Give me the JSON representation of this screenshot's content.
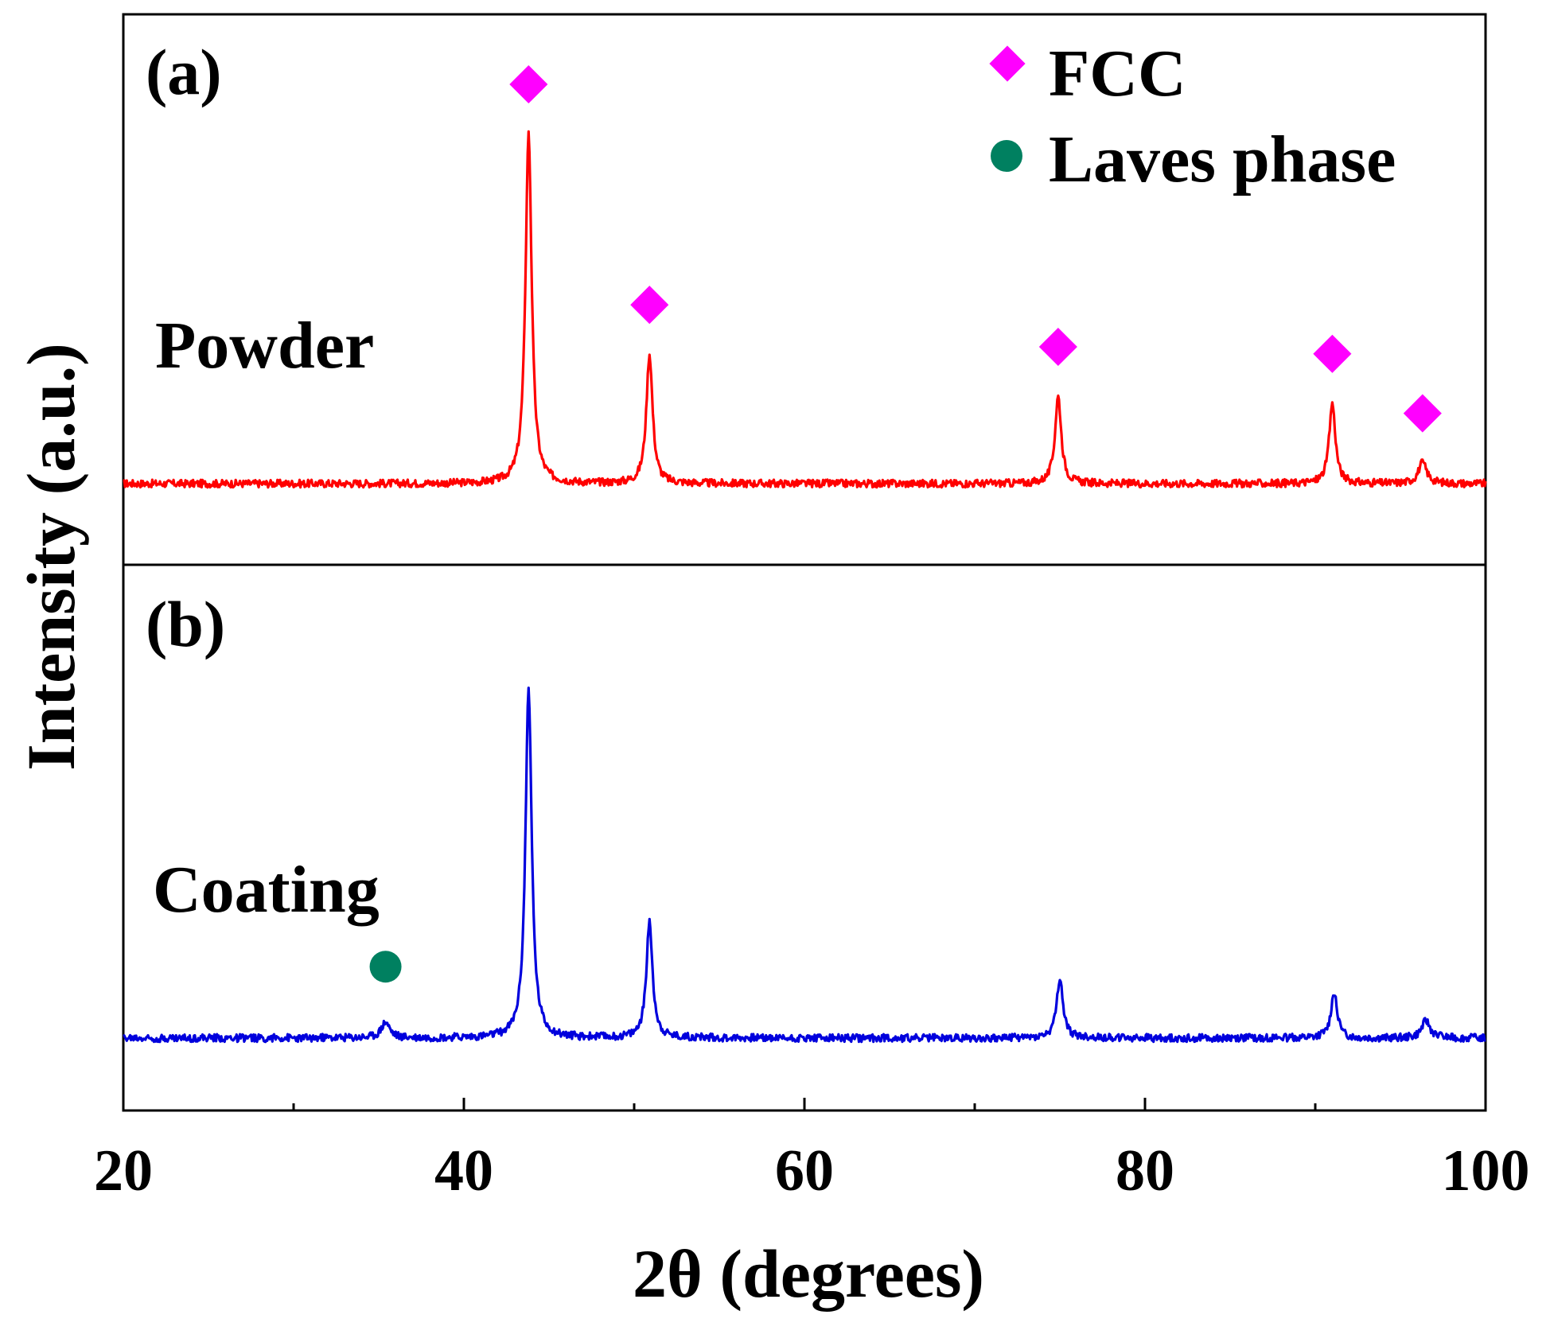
{
  "chart_data": {
    "type": "line",
    "xlabel": "2θ (degrees)",
    "ylabel": "Intensity (a.u.)",
    "xlim": [
      20,
      100
    ],
    "x_ticks": [
      "20",
      "40",
      "60",
      "80",
      "100"
    ],
    "x_minor_ticks": [
      30,
      50,
      70,
      90
    ],
    "legend": [
      {
        "label": "FCC",
        "marker": "diamond",
        "color": "#ff00ff"
      },
      {
        "label": "Laves phase",
        "marker": "circle",
        "color": "#008060"
      }
    ],
    "panels": [
      {
        "id": "a",
        "panel_label": "(a)",
        "sample_label": "Powder",
        "color": "#ff0000",
        "baseline": 0.1,
        "peaks": [
          {
            "x": 43.8,
            "height": 1.0,
            "phase": "FCC"
          },
          {
            "x": 50.9,
            "height": 0.37,
            "phase": "FCC"
          },
          {
            "x": 74.9,
            "height": 0.25,
            "phase": "FCC"
          },
          {
            "x": 91.0,
            "height": 0.23,
            "phase": "FCC"
          },
          {
            "x": 96.3,
            "height": 0.06,
            "phase": "FCC"
          }
        ],
        "markers": [
          {
            "x": 43.8,
            "phase": "FCC"
          },
          {
            "x": 50.9,
            "phase": "FCC"
          },
          {
            "x": 74.9,
            "phase": "FCC"
          },
          {
            "x": 91.0,
            "phase": "FCC"
          },
          {
            "x": 96.3,
            "phase": "FCC"
          }
        ]
      },
      {
        "id": "b",
        "panel_label": "(b)",
        "sample_label": "Coating",
        "color": "#0000dd",
        "baseline": 0.1,
        "peaks": [
          {
            "x": 35.4,
            "height": 0.045,
            "phase": "Laves phase"
          },
          {
            "x": 43.8,
            "height": 1.0,
            "phase": "FCC"
          },
          {
            "x": 50.9,
            "height": 0.33,
            "phase": "FCC"
          },
          {
            "x": 75.0,
            "height": 0.17,
            "phase": "FCC"
          },
          {
            "x": 91.1,
            "height": 0.13,
            "phase": "FCC"
          },
          {
            "x": 96.5,
            "height": 0.05,
            "phase": "FCC"
          }
        ],
        "markers": [
          {
            "x": 35.4,
            "phase": "Laves phase"
          }
        ]
      }
    ]
  }
}
